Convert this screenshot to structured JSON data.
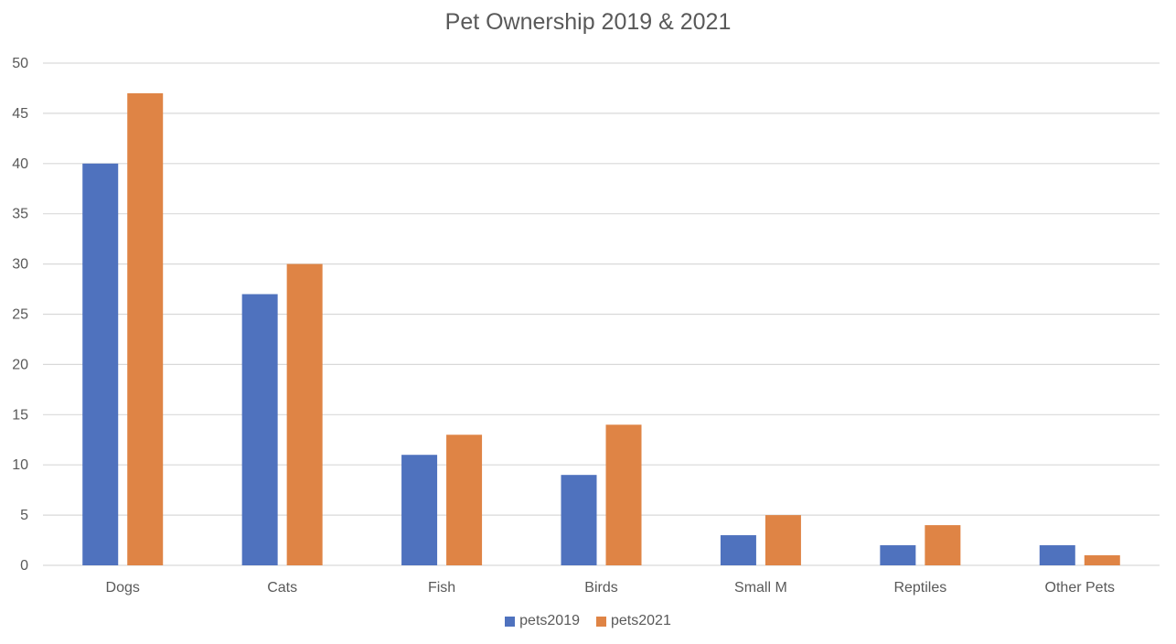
{
  "chart_data": {
    "type": "bar",
    "title": "Pet Ownership 2019 & 2021",
    "xlabel": "",
    "ylabel": "",
    "categories": [
      "Dogs",
      "Cats",
      "Fish",
      "Birds",
      "Small M",
      "Reptiles",
      "Other Pets"
    ],
    "series": [
      {
        "name": "pets2019",
        "color": "#4f72be",
        "values": [
          40,
          27,
          11,
          9,
          3,
          2,
          2
        ]
      },
      {
        "name": "pets2021",
        "color": "#df8445",
        "values": [
          47,
          30,
          13,
          14,
          5,
          4,
          1
        ]
      }
    ],
    "ylim": [
      0,
      50
    ],
    "yticks": [
      "0",
      "5",
      "10",
      "15",
      "20",
      "25",
      "30",
      "35",
      "40",
      "45",
      "50"
    ],
    "grid": true,
    "legend_position": "bottom"
  }
}
